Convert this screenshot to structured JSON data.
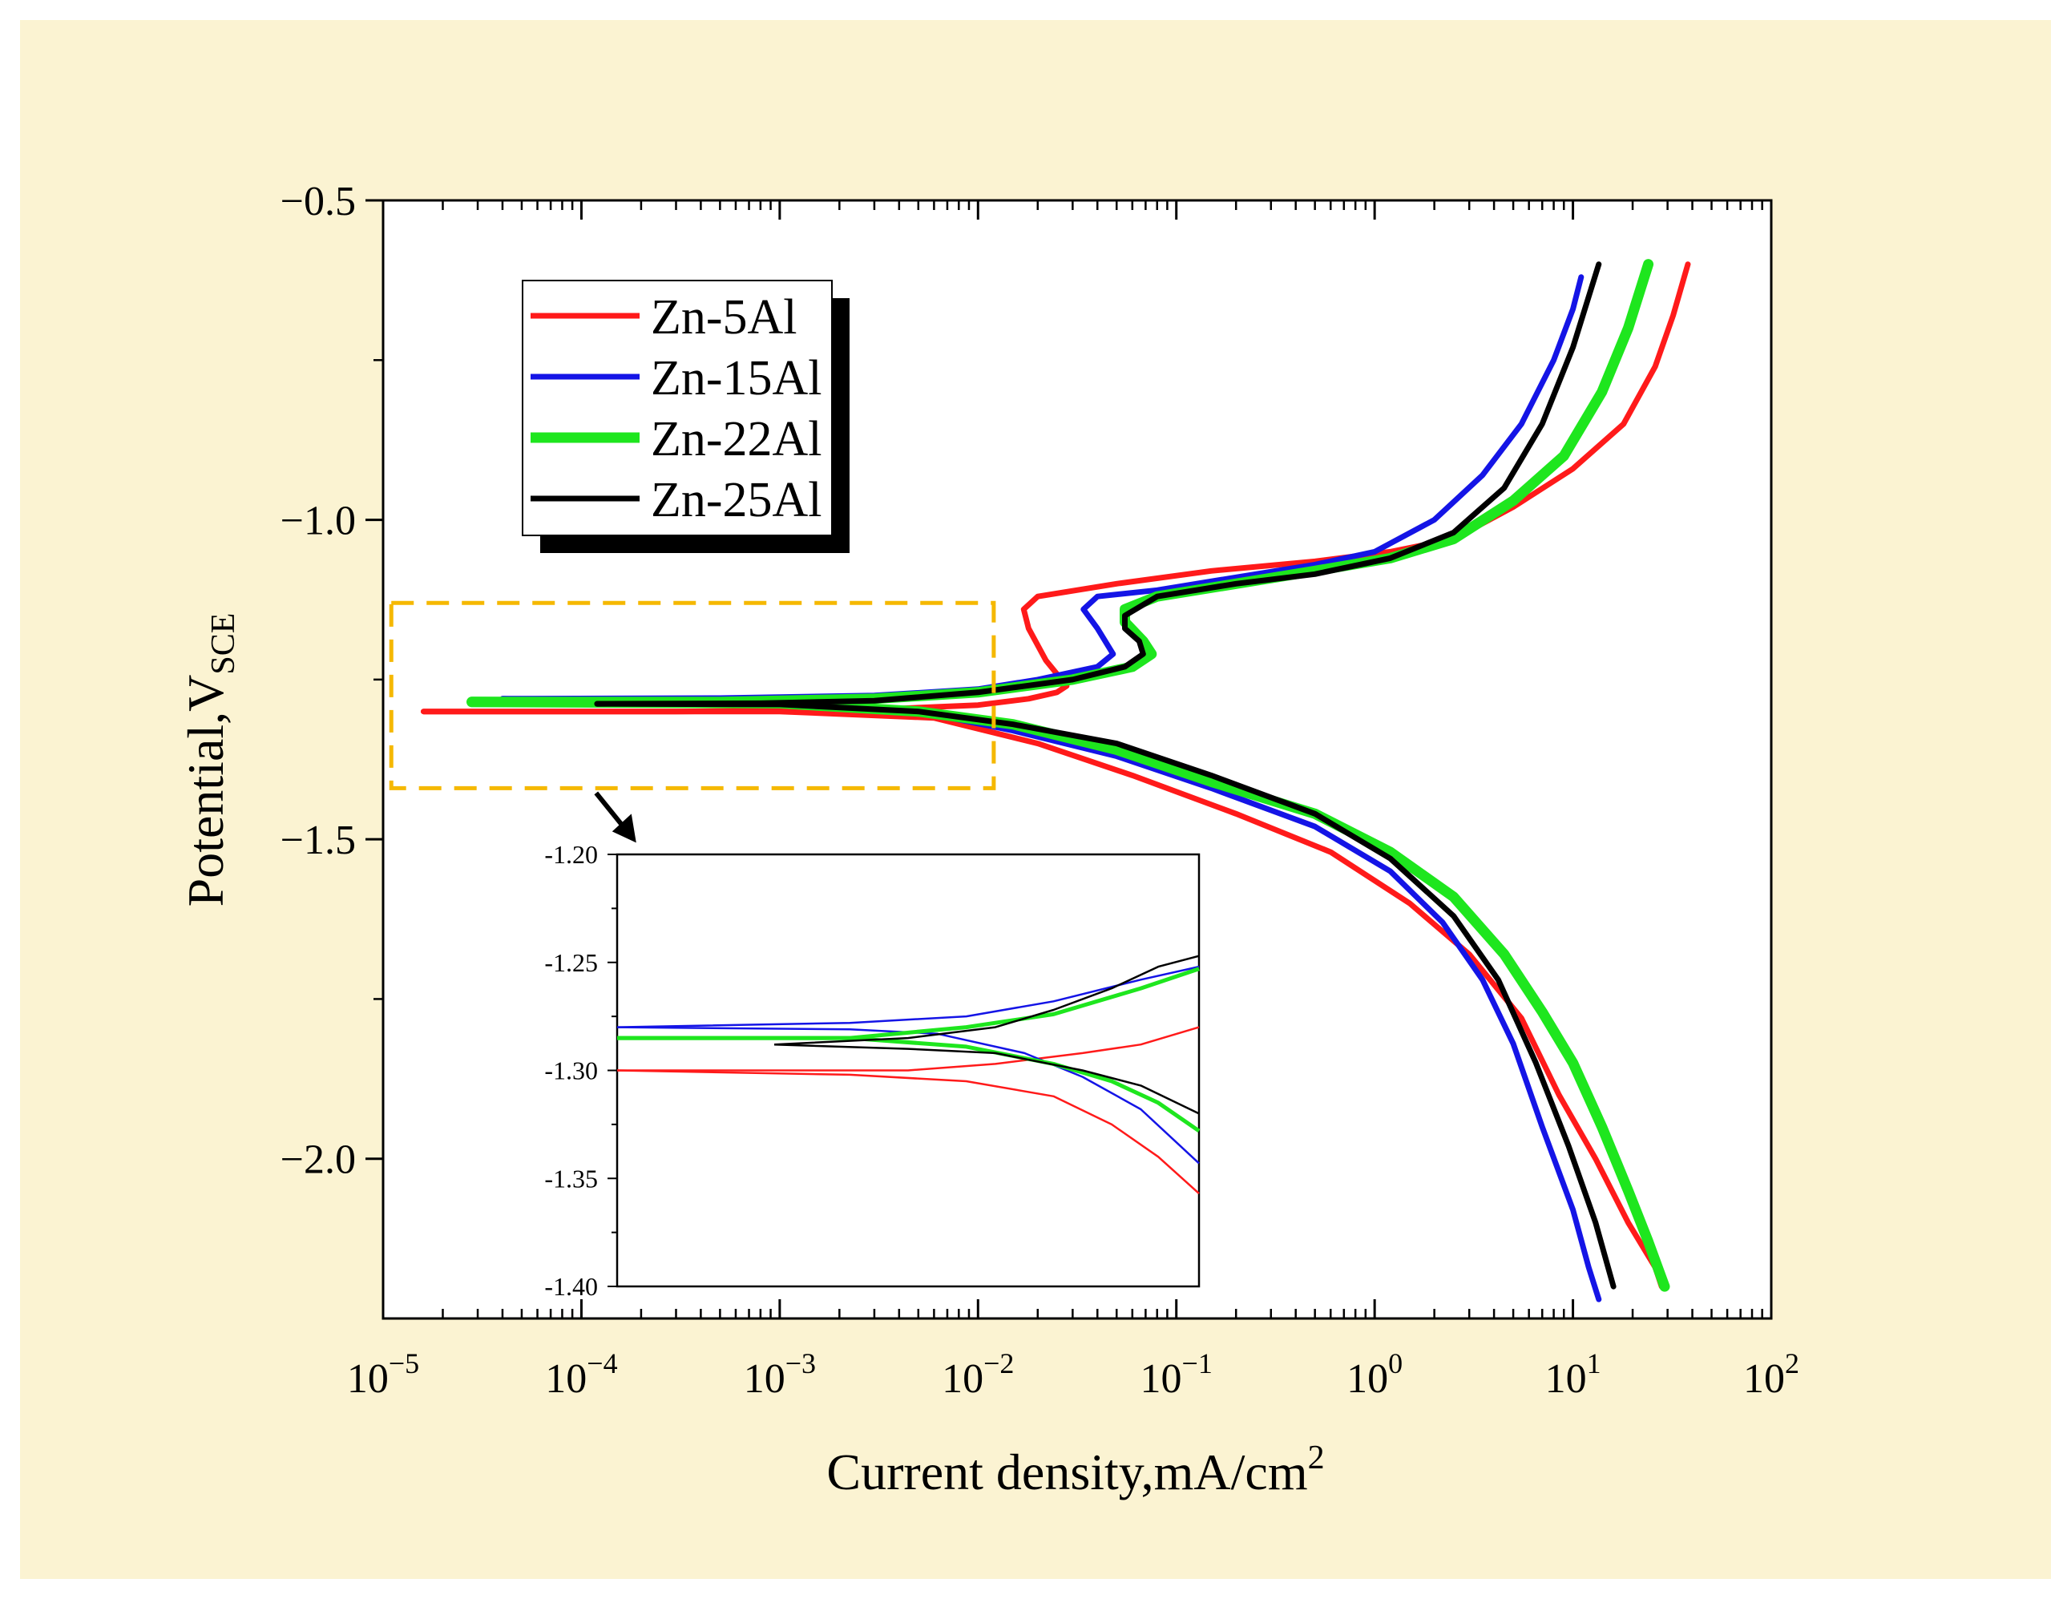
{
  "chart_data": {
    "type": "line",
    "xlabel": "Current density,mA/cm",
    "xlabel_sup": "2",
    "ylabel": "Potential,V",
    "ylabel_sub": "SCE",
    "x_scale": "log",
    "xlim": [
      1e-05,
      100
    ],
    "ylim": [
      -2.25,
      -0.5
    ],
    "x_ticks": [
      {
        "value": 1e-05,
        "base": "10",
        "exp": "−5"
      },
      {
        "value": 0.0001,
        "base": "10",
        "exp": "−4"
      },
      {
        "value": 0.001,
        "base": "10",
        "exp": "−3"
      },
      {
        "value": 0.01,
        "base": "10",
        "exp": "−2"
      },
      {
        "value": 0.1,
        "base": "10",
        "exp": "−1"
      },
      {
        "value": 1,
        "base": "10",
        "exp": "0"
      },
      {
        "value": 10,
        "base": "10",
        "exp": "1"
      },
      {
        "value": 100,
        "base": "10",
        "exp": "2"
      }
    ],
    "y_ticks": [
      {
        "value": -0.5,
        "label": "−0.5"
      },
      {
        "value": -1.0,
        "label": "−1.0"
      },
      {
        "value": -1.5,
        "label": "−1.5"
      },
      {
        "value": -2.0,
        "label": "−2.0"
      }
    ],
    "legend_position": "top-left",
    "series": [
      {
        "name": "Zn-5Al",
        "color": "#ff1a1a",
        "anodic": [
          [
            1.6e-05,
            -1.3
          ],
          [
            0.0003,
            -1.3
          ],
          [
            0.003,
            -1.297
          ],
          [
            0.01,
            -1.29
          ],
          [
            0.018,
            -1.28
          ],
          [
            0.025,
            -1.27
          ],
          [
            0.028,
            -1.26
          ],
          [
            0.022,
            -1.22
          ],
          [
            0.018,
            -1.17
          ],
          [
            0.017,
            -1.14
          ],
          [
            0.02,
            -1.12
          ],
          [
            0.05,
            -1.1
          ],
          [
            0.15,
            -1.08
          ],
          [
            0.5,
            -1.065
          ],
          [
            1.2,
            -1.05
          ],
          [
            2.5,
            -1.03
          ],
          [
            5,
            -0.98
          ],
          [
            10,
            -0.92
          ],
          [
            18,
            -0.85
          ],
          [
            26,
            -0.76
          ],
          [
            32,
            -0.68
          ],
          [
            38,
            -0.6
          ]
        ],
        "cathodic": [
          [
            1.6e-05,
            -1.3
          ],
          [
            0.001,
            -1.3
          ],
          [
            0.006,
            -1.31
          ],
          [
            0.02,
            -1.35
          ],
          [
            0.06,
            -1.4
          ],
          [
            0.2,
            -1.46
          ],
          [
            0.6,
            -1.52
          ],
          [
            1.5,
            -1.6
          ],
          [
            3,
            -1.68
          ],
          [
            5.5,
            -1.78
          ],
          [
            8.5,
            -1.9
          ],
          [
            13,
            -2.0
          ],
          [
            19,
            -2.1
          ],
          [
            26,
            -2.17
          ],
          [
            28,
            -2.2
          ]
        ]
      },
      {
        "name": "Zn-15Al",
        "color": "#1414e6",
        "anodic": [
          [
            4e-05,
            -1.28
          ],
          [
            0.0005,
            -1.279
          ],
          [
            0.003,
            -1.275
          ],
          [
            0.01,
            -1.265
          ],
          [
            0.02,
            -1.25
          ],
          [
            0.04,
            -1.23
          ],
          [
            0.048,
            -1.21
          ],
          [
            0.04,
            -1.17
          ],
          [
            0.034,
            -1.14
          ],
          [
            0.04,
            -1.12
          ],
          [
            0.08,
            -1.11
          ],
          [
            0.2,
            -1.09
          ],
          [
            0.5,
            -1.07
          ],
          [
            1,
            -1.05
          ],
          [
            2,
            -1.0
          ],
          [
            3.5,
            -0.93
          ],
          [
            5.5,
            -0.85
          ],
          [
            8,
            -0.75
          ],
          [
            10,
            -0.67
          ],
          [
            11,
            -0.62
          ]
        ],
        "cathodic": [
          [
            4e-05,
            -1.28
          ],
          [
            0.001,
            -1.282
          ],
          [
            0.005,
            -1.3
          ],
          [
            0.015,
            -1.33
          ],
          [
            0.05,
            -1.37
          ],
          [
            0.15,
            -1.42
          ],
          [
            0.5,
            -1.48
          ],
          [
            1.2,
            -1.55
          ],
          [
            2.2,
            -1.63
          ],
          [
            3.5,
            -1.72
          ],
          [
            5,
            -1.82
          ],
          [
            7,
            -1.95
          ],
          [
            10,
            -2.08
          ],
          [
            12,
            -2.17
          ],
          [
            13.5,
            -2.22
          ]
        ]
      },
      {
        "name": "Zn-22Al",
        "color": "#1ee61e",
        "anodic": [
          [
            2.8e-05,
            -1.285
          ],
          [
            0.0005,
            -1.285
          ],
          [
            0.003,
            -1.28
          ],
          [
            0.01,
            -1.27
          ],
          [
            0.03,
            -1.25
          ],
          [
            0.06,
            -1.23
          ],
          [
            0.075,
            -1.21
          ],
          [
            0.068,
            -1.19
          ],
          [
            0.055,
            -1.16
          ],
          [
            0.055,
            -1.14
          ],
          [
            0.08,
            -1.12
          ],
          [
            0.2,
            -1.1
          ],
          [
            0.5,
            -1.08
          ],
          [
            1.2,
            -1.06
          ],
          [
            2.5,
            -1.03
          ],
          [
            5,
            -0.97
          ],
          [
            9,
            -0.9
          ],
          [
            14,
            -0.8
          ],
          [
            19,
            -0.7
          ],
          [
            24,
            -0.6
          ]
        ],
        "cathodic": [
          [
            2.8e-05,
            -1.285
          ],
          [
            0.001,
            -1.287
          ],
          [
            0.005,
            -1.3
          ],
          [
            0.015,
            -1.32
          ],
          [
            0.05,
            -1.36
          ],
          [
            0.15,
            -1.41
          ],
          [
            0.5,
            -1.46
          ],
          [
            1.2,
            -1.52
          ],
          [
            2.5,
            -1.59
          ],
          [
            4.5,
            -1.68
          ],
          [
            7,
            -1.77
          ],
          [
            10,
            -1.85
          ],
          [
            14,
            -1.95
          ],
          [
            19,
            -2.05
          ],
          [
            24,
            -2.13
          ],
          [
            29,
            -2.2
          ]
        ]
      },
      {
        "name": "Zn-25Al",
        "color": "#000000",
        "anodic": [
          [
            0.00012,
            -1.288
          ],
          [
            0.0008,
            -1.287
          ],
          [
            0.003,
            -1.283
          ],
          [
            0.01,
            -1.27
          ],
          [
            0.03,
            -1.25
          ],
          [
            0.055,
            -1.23
          ],
          [
            0.068,
            -1.21
          ],
          [
            0.065,
            -1.19
          ],
          [
            0.055,
            -1.17
          ],
          [
            0.055,
            -1.15
          ],
          [
            0.08,
            -1.12
          ],
          [
            0.2,
            -1.1
          ],
          [
            0.5,
            -1.085
          ],
          [
            1.2,
            -1.06
          ],
          [
            2.5,
            -1.02
          ],
          [
            4.5,
            -0.95
          ],
          [
            7,
            -0.85
          ],
          [
            10,
            -0.73
          ],
          [
            13.5,
            -0.6
          ]
        ],
        "cathodic": [
          [
            0.00012,
            -1.288
          ],
          [
            0.001,
            -1.289
          ],
          [
            0.005,
            -1.3
          ],
          [
            0.015,
            -1.32
          ],
          [
            0.05,
            -1.35
          ],
          [
            0.15,
            -1.4
          ],
          [
            0.5,
            -1.46
          ],
          [
            1.2,
            -1.53
          ],
          [
            2.5,
            -1.62
          ],
          [
            4.2,
            -1.72
          ],
          [
            6.5,
            -1.85
          ],
          [
            9.5,
            -1.98
          ],
          [
            13,
            -2.1
          ],
          [
            16,
            -2.2
          ]
        ]
      }
    ],
    "zoom_box": {
      "xlim": [
        1.1e-05,
        0.012
      ],
      "ylim": [
        -1.42,
        -1.13
      ]
    },
    "inset": {
      "ylim": [
        -1.4,
        -1.2
      ],
      "y_ticks": [
        "-1.20",
        "-1.25",
        "-1.30",
        "-1.35",
        "-1.40"
      ],
      "series": [
        {
          "name": "Zn-5Al",
          "color": "#ff1a1a",
          "anodic": [
            [
              0,
              -1.3
            ],
            [
              0.5,
              -1.3
            ],
            [
              0.65,
              -1.297
            ],
            [
              0.8,
              -1.292
            ],
            [
              0.9,
              -1.288
            ],
            [
              1,
              -1.28
            ]
          ],
          "cathodic": [
            [
              0,
              -1.3
            ],
            [
              0.4,
              -1.302
            ],
            [
              0.6,
              -1.305
            ],
            [
              0.75,
              -1.312
            ],
            [
              0.85,
              -1.325
            ],
            [
              0.93,
              -1.34
            ],
            [
              1,
              -1.357
            ]
          ]
        },
        {
          "name": "Zn-15Al",
          "color": "#1414e6",
          "anodic": [
            [
              0,
              -1.28
            ],
            [
              0.4,
              -1.278
            ],
            [
              0.6,
              -1.275
            ],
            [
              0.75,
              -1.268
            ],
            [
              0.9,
              -1.258
            ],
            [
              1,
              -1.252
            ]
          ],
          "cathodic": [
            [
              0,
              -1.28
            ],
            [
              0.4,
              -1.281
            ],
            [
              0.55,
              -1.283
            ],
            [
              0.7,
              -1.292
            ],
            [
              0.8,
              -1.303
            ],
            [
              0.9,
              -1.318
            ],
            [
              1,
              -1.343
            ]
          ]
        },
        {
          "name": "Zn-22Al",
          "color": "#1ee61e",
          "anodic": [
            [
              0,
              -1.285
            ],
            [
              0.4,
              -1.285
            ],
            [
              0.6,
              -1.28
            ],
            [
              0.75,
              -1.274
            ],
            [
              0.9,
              -1.262
            ],
            [
              1,
              -1.253
            ]
          ],
          "cathodic": [
            [
              0,
              -1.285
            ],
            [
              0.4,
              -1.285
            ],
            [
              0.6,
              -1.289
            ],
            [
              0.75,
              -1.297
            ],
            [
              0.85,
              -1.305
            ],
            [
              0.93,
              -1.315
            ],
            [
              1,
              -1.328
            ]
          ]
        },
        {
          "name": "Zn-25Al",
          "color": "#000000",
          "anodic": [
            [
              0.27,
              -1.288
            ],
            [
              0.5,
              -1.285
            ],
            [
              0.65,
              -1.28
            ],
            [
              0.75,
              -1.272
            ],
            [
              0.85,
              -1.262
            ],
            [
              0.93,
              -1.252
            ],
            [
              1,
              -1.247
            ]
          ],
          "cathodic": [
            [
              0.27,
              -1.288
            ],
            [
              0.5,
              -1.29
            ],
            [
              0.65,
              -1.292
            ],
            [
              0.8,
              -1.3
            ],
            [
              0.9,
              -1.307
            ],
            [
              1,
              -1.32
            ]
          ]
        }
      ]
    }
  }
}
